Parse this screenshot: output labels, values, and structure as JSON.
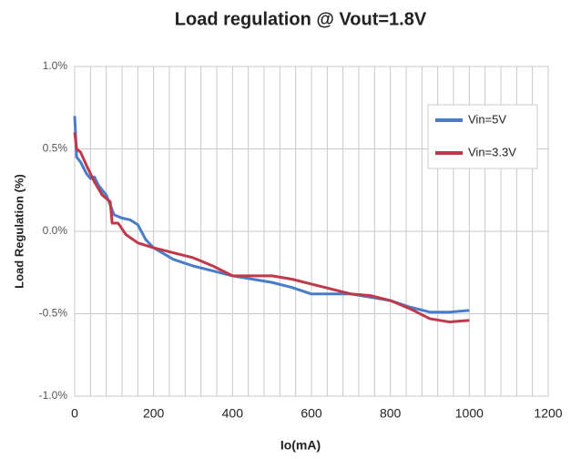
{
  "chart_data": {
    "type": "line",
    "title": "Load regulation @ Vout=1.8V",
    "x_label": "Io(mA)",
    "y_label": "Load Regulation (%)",
    "xlim": [
      0,
      1200
    ],
    "xticks": [
      0,
      200,
      400,
      600,
      800,
      1000,
      1200
    ],
    "x_minor_ticks": [
      40,
      80,
      120,
      160,
      240,
      280,
      320,
      360,
      440,
      480,
      520,
      560,
      640,
      680,
      720,
      760,
      840,
      880,
      920,
      960,
      1040,
      1080,
      1120,
      1160
    ],
    "ylim": [
      -1.0,
      1.0
    ],
    "yticks": [
      {
        "value": 1.0,
        "label": "1.0%"
      },
      {
        "value": 0.5,
        "label": "0.5%"
      },
      {
        "value": 0.0,
        "label": "0.0%"
      },
      {
        "value": -0.5,
        "label": "-0.5%"
      },
      {
        "value": -1.0,
        "label": "-1.0%"
      }
    ],
    "grid": true,
    "legend": "upper right",
    "series": [
      {
        "name": "Vin=5V",
        "color": "#4a7cc7",
        "x": [
          0,
          5,
          15,
          30,
          40,
          50,
          60,
          80,
          100,
          120,
          140,
          160,
          180,
          200,
          250,
          300,
          350,
          400,
          450,
          500,
          550,
          600,
          650,
          700,
          750,
          800,
          850,
          900,
          950,
          1000
        ],
        "values": [
          0.7,
          0.45,
          0.42,
          0.35,
          0.32,
          0.33,
          0.28,
          0.22,
          0.1,
          0.08,
          0.07,
          0.04,
          -0.05,
          -0.1,
          -0.17,
          -0.21,
          -0.24,
          -0.27,
          -0.29,
          -0.31,
          -0.34,
          -0.38,
          -0.38,
          -0.38,
          -0.4,
          -0.42,
          -0.46,
          -0.49,
          -0.49,
          -0.48
        ]
      },
      {
        "name": "Vin=3.3V",
        "color": "#c0394a",
        "x": [
          0,
          5,
          15,
          30,
          50,
          70,
          90,
          95,
          110,
          130,
          160,
          200,
          250,
          300,
          350,
          400,
          450,
          500,
          550,
          600,
          650,
          700,
          750,
          800,
          850,
          900,
          950,
          1000
        ],
        "values": [
          0.6,
          0.5,
          0.48,
          0.4,
          0.3,
          0.22,
          0.18,
          0.05,
          0.05,
          -0.02,
          -0.07,
          -0.1,
          -0.13,
          -0.16,
          -0.21,
          -0.27,
          -0.27,
          -0.27,
          -0.29,
          -0.32,
          -0.35,
          -0.38,
          -0.39,
          -0.42,
          -0.47,
          -0.53,
          -0.55,
          -0.54
        ]
      }
    ]
  }
}
